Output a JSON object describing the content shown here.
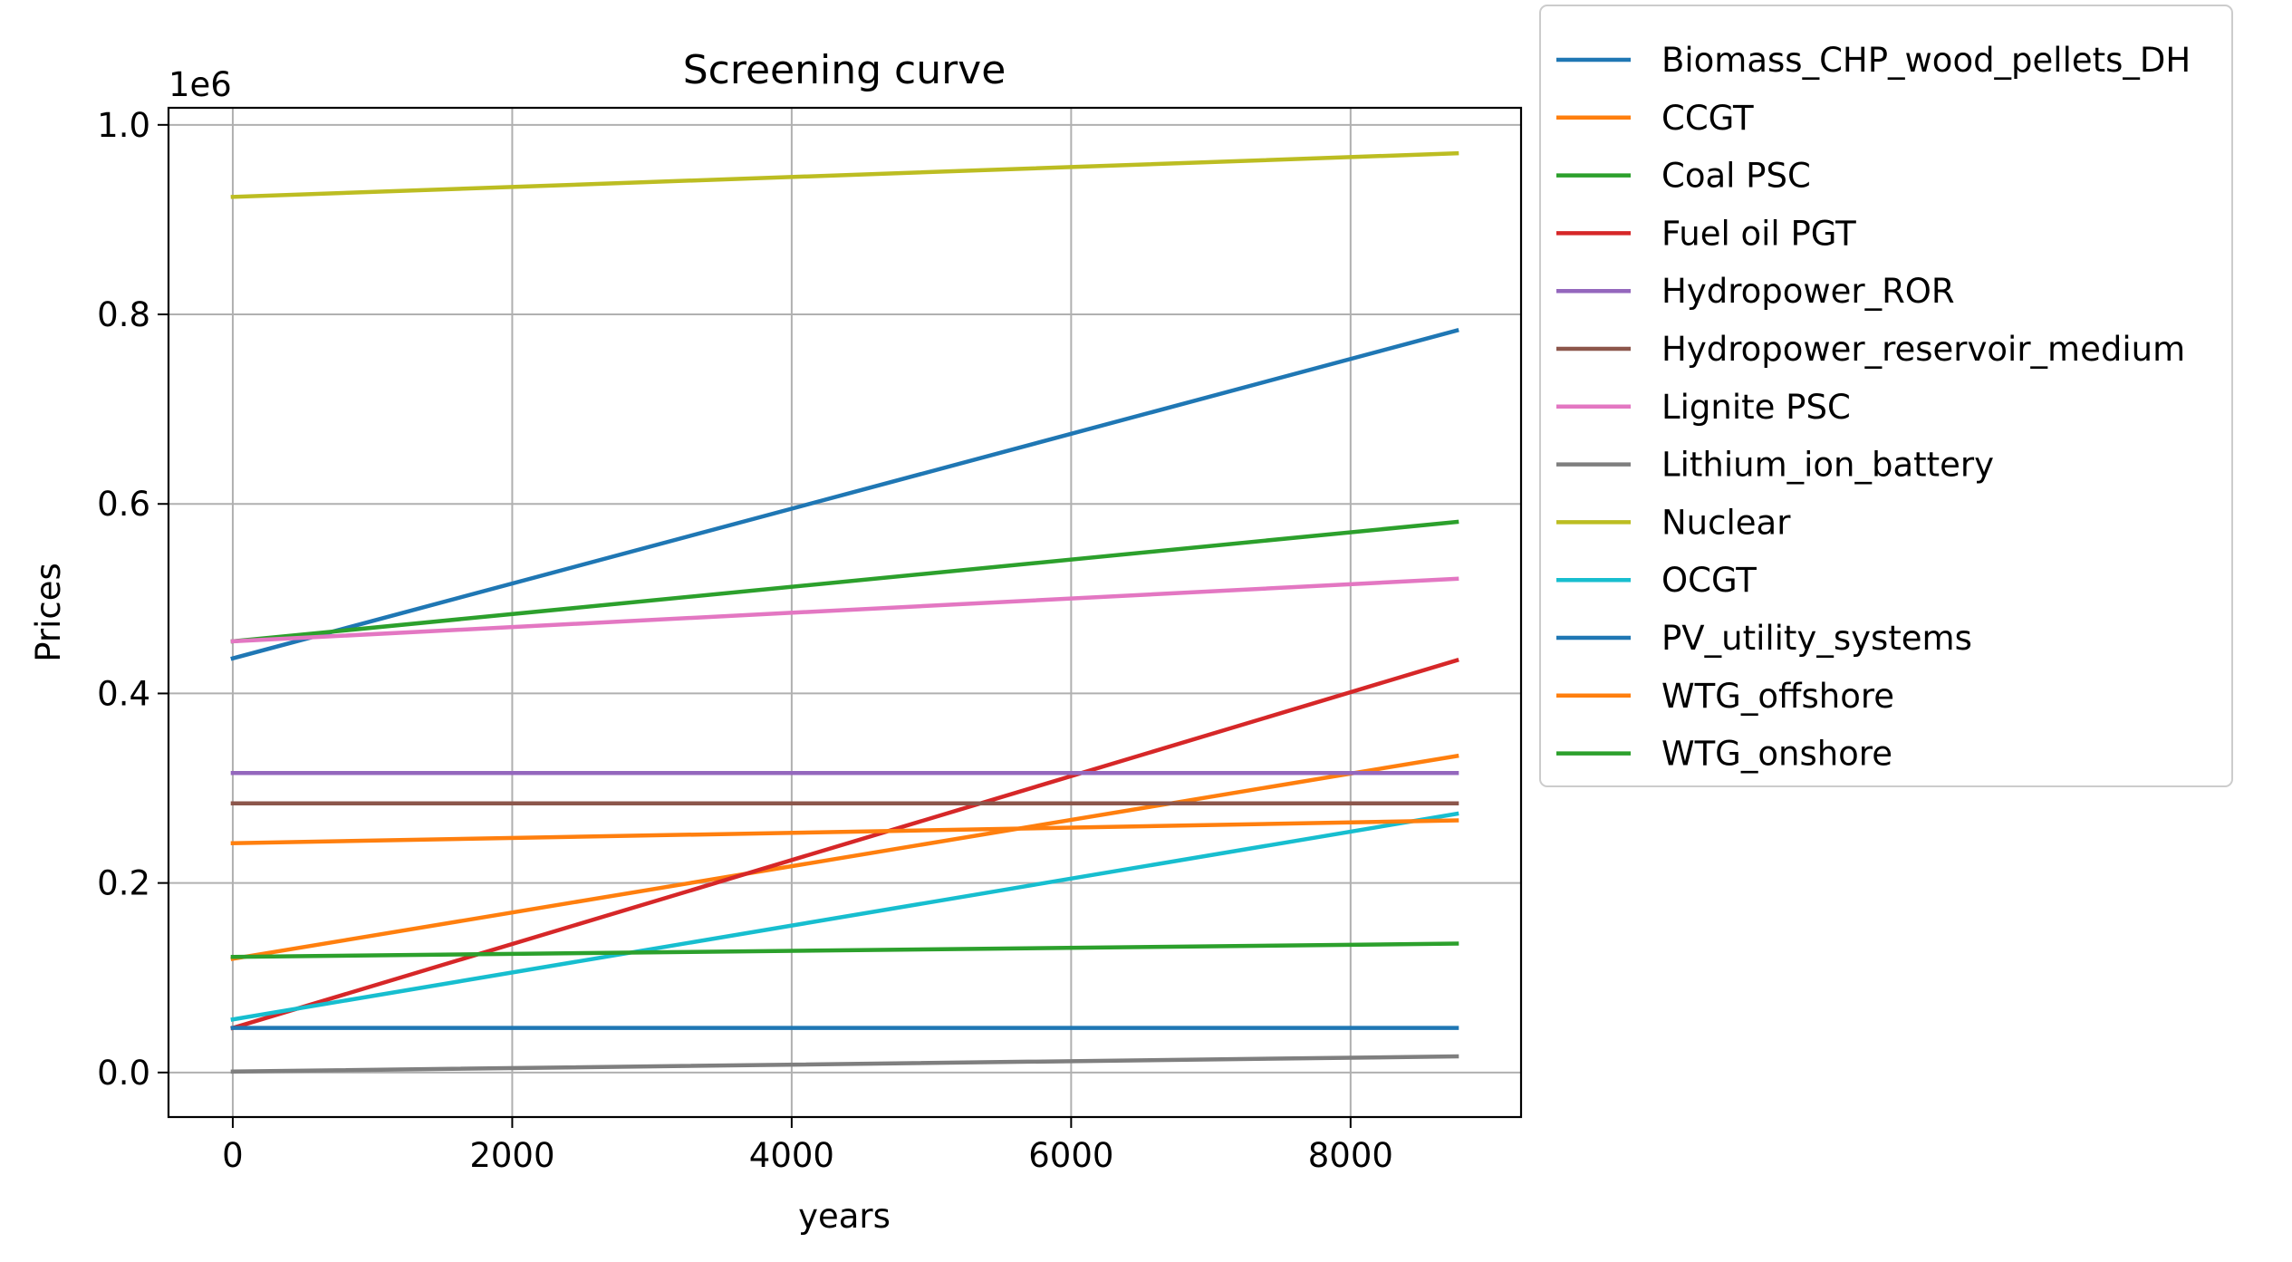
{
  "chart_data": {
    "type": "line",
    "title": "Screening curve",
    "xlabel": "years",
    "ylabel": "Prices",
    "y_offset_label": "1e6",
    "xlim": [
      -460,
      9220
    ],
    "ylim": [
      -0.047,
      1.018
    ],
    "xticks": [
      0,
      2000,
      4000,
      6000,
      8000
    ],
    "xtick_labels": [
      "0",
      "2000",
      "4000",
      "6000",
      "8000"
    ],
    "yticks": [
      0.0,
      0.2,
      0.4,
      0.6,
      0.8,
      1.0
    ],
    "ytick_labels": [
      "0.0",
      "0.2",
      "0.4",
      "0.6",
      "0.8",
      "1.0"
    ],
    "grid": true,
    "legend_position": "outside-right-top",
    "x": [
      0,
      8760
    ],
    "series": [
      {
        "name": "Biomass_CHP_wood_pellets_DH",
        "color": "#1f77b4",
        "values": [
          0.437,
          0.783
        ]
      },
      {
        "name": "CCGT",
        "color": "#ff7f0e",
        "values": [
          0.12,
          0.334
        ]
      },
      {
        "name": "Coal PSC",
        "color": "#2ca02c",
        "values": [
          0.455,
          0.581
        ]
      },
      {
        "name": "Fuel oil PGT",
        "color": "#d62728",
        "values": [
          0.047,
          0.435
        ]
      },
      {
        "name": "Hydropower_ROR",
        "color": "#9467bd",
        "values": [
          0.316,
          0.316
        ]
      },
      {
        "name": "Hydropower_reservoir_medium",
        "color": "#8c564b",
        "values": [
          0.284,
          0.284
        ]
      },
      {
        "name": "Lignite PSC",
        "color": "#e377c2",
        "values": [
          0.455,
          0.521
        ]
      },
      {
        "name": "Lithium_ion_battery",
        "color": "#7f7f7f",
        "values": [
          0.001,
          0.017
        ]
      },
      {
        "name": "Nuclear",
        "color": "#bcbd22",
        "values": [
          0.924,
          0.97
        ]
      },
      {
        "name": "OCGT",
        "color": "#17becf",
        "values": [
          0.056,
          0.273
        ]
      },
      {
        "name": "PV_utility_systems",
        "color": "#1f77b4",
        "values": [
          0.047,
          0.047
        ]
      },
      {
        "name": "WTG_offshore",
        "color": "#ff7f0e",
        "values": [
          0.242,
          0.266
        ]
      },
      {
        "name": "WTG_onshore",
        "color": "#2ca02c",
        "values": [
          0.122,
          0.136
        ]
      }
    ]
  }
}
